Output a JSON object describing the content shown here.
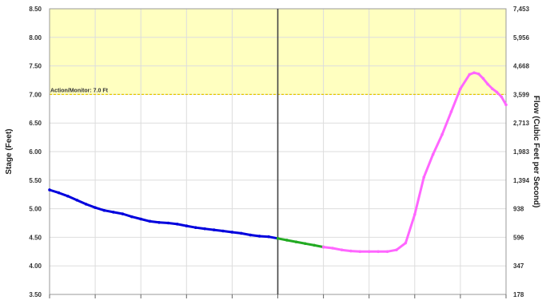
{
  "chart_data": {
    "type": "line",
    "ylabel": "Stage (Feet)",
    "y2label": "Flow (Cubic Feet per Second)",
    "ylim": [
      3.5,
      8.5
    ],
    "yticks": [
      "3.50",
      "4.00",
      "4.50",
      "5.00",
      "5.50",
      "6.00",
      "6.50",
      "7.00",
      "7.50",
      "8.00",
      "8.50"
    ],
    "y2ticks": [
      "178",
      "347",
      "596",
      "938",
      "1,394",
      "1,983",
      "2,713",
      "3,599",
      "4,668",
      "5,956",
      "7,453"
    ],
    "xlim": [
      0,
      100
    ],
    "grid": true,
    "threshold": {
      "label": "Action/Monitor: 7.0 Ft",
      "value": 7.0,
      "band_top": 8.5,
      "band_color": "#ffffc0",
      "line_color": "#e6c800"
    },
    "now_marker_x": 50,
    "series": [
      {
        "role": "observed",
        "color": "#0000dd",
        "x": [
          0,
          2,
          4,
          6,
          8,
          10,
          12,
          14,
          16,
          18,
          20,
          22,
          24,
          26,
          28,
          30,
          32,
          34,
          36,
          38,
          40,
          42,
          44,
          46,
          48,
          50
        ],
        "values": [
          5.33,
          5.28,
          5.22,
          5.15,
          5.08,
          5.02,
          4.97,
          4.94,
          4.91,
          4.86,
          4.82,
          4.78,
          4.76,
          4.75,
          4.73,
          4.7,
          4.67,
          4.65,
          4.63,
          4.61,
          4.59,
          4.57,
          4.54,
          4.52,
          4.51,
          4.48
        ]
      },
      {
        "role": "recent",
        "color": "#22aa22",
        "x": [
          50,
          52,
          54,
          56,
          58,
          60
        ],
        "values": [
          4.48,
          4.45,
          4.42,
          4.39,
          4.36,
          4.33
        ]
      },
      {
        "role": "forecast",
        "color": "#ff66ff",
        "x": [
          60,
          62,
          64,
          66,
          68,
          70,
          72,
          74,
          76,
          78,
          80,
          82,
          84,
          86,
          88,
          90,
          92,
          93,
          94,
          95,
          96,
          97,
          98,
          99,
          100
        ],
        "values": [
          4.33,
          4.31,
          4.28,
          4.26,
          4.25,
          4.25,
          4.25,
          4.25,
          4.28,
          4.4,
          4.9,
          5.55,
          5.95,
          6.3,
          6.7,
          7.1,
          7.35,
          7.38,
          7.36,
          7.28,
          7.18,
          7.1,
          7.04,
          6.96,
          6.82
        ]
      }
    ]
  }
}
